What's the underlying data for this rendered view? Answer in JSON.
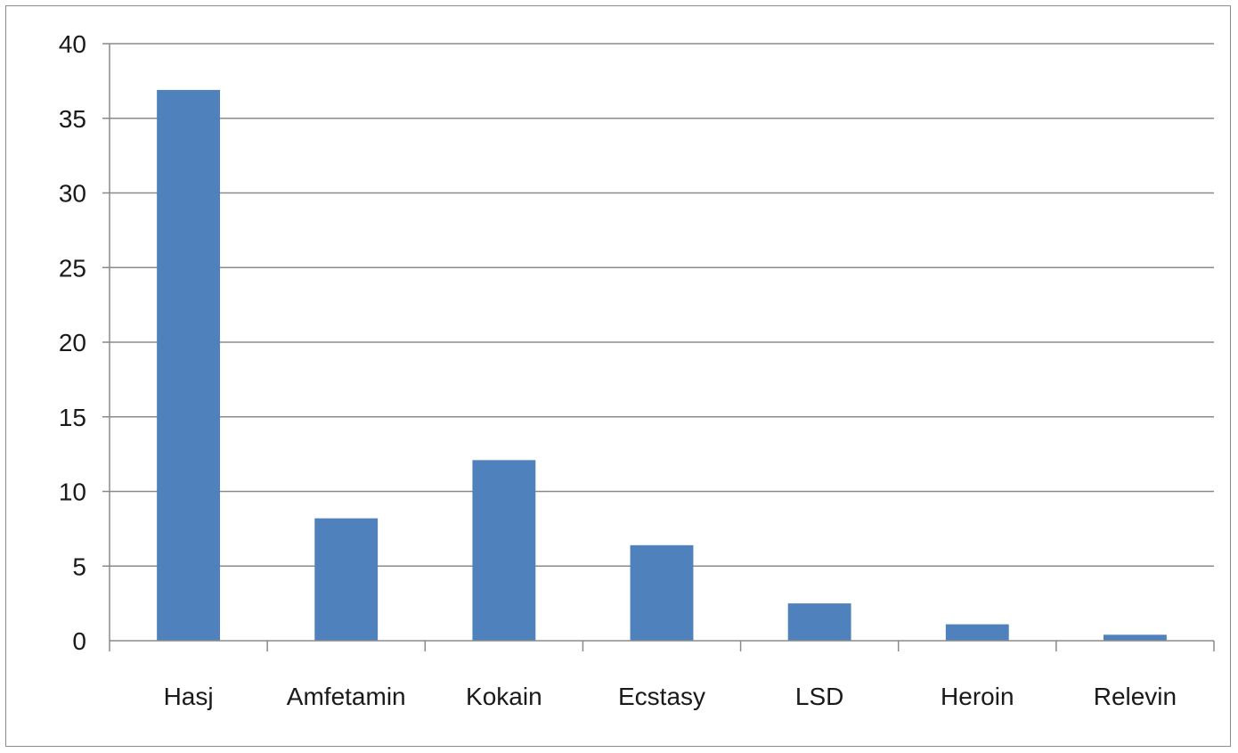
{
  "chart_data": {
    "type": "bar",
    "title": "",
    "xlabel": "",
    "ylabel": "",
    "ylim": [
      0,
      40
    ],
    "ytick_step": 5,
    "grid": true,
    "legend": "none",
    "bar_color": "#4f81bd",
    "categories": [
      "Hasj",
      "Amfetamin",
      "Kokain",
      "Ecstasy",
      "LSD",
      "Heroin",
      "Relevin"
    ],
    "values": [
      36.9,
      8.2,
      12.1,
      6.4,
      2.5,
      1.1,
      0.4
    ]
  }
}
